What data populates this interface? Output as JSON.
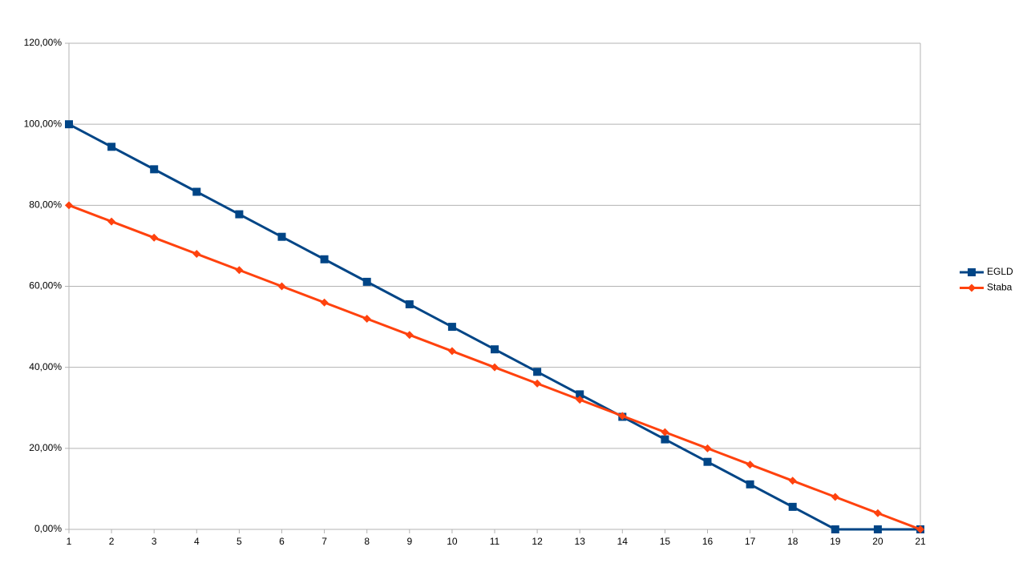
{
  "chart_data": {
    "type": "line",
    "x": [
      1,
      2,
      3,
      4,
      5,
      6,
      7,
      8,
      9,
      10,
      11,
      12,
      13,
      14,
      15,
      16,
      17,
      18,
      19,
      20,
      21
    ],
    "xlim": [
      1,
      21
    ],
    "xticks": [
      1,
      2,
      3,
      4,
      5,
      6,
      7,
      8,
      9,
      10,
      11,
      12,
      13,
      14,
      15,
      16,
      17,
      18,
      19,
      20,
      21
    ],
    "ylim": [
      0,
      120
    ],
    "yticks": [
      {
        "value": 0,
        "label": "0,00%"
      },
      {
        "value": 20,
        "label": "20,00%"
      },
      {
        "value": 40,
        "label": "40,00%"
      },
      {
        "value": 60,
        "label": "60,00%"
      },
      {
        "value": 80,
        "label": "80,00%"
      },
      {
        "value": 100,
        "label": "100,00%"
      },
      {
        "value": 120,
        "label": "120,00%"
      }
    ],
    "grid": true,
    "legend": "right",
    "series": [
      {
        "name": "EGLD",
        "color": "#004586",
        "marker": "square",
        "values": [
          100,
          94.44,
          88.89,
          83.33,
          77.78,
          72.22,
          66.67,
          61.11,
          55.56,
          50,
          44.44,
          38.89,
          33.33,
          27.78,
          22.22,
          16.67,
          11.11,
          5.56,
          0,
          0,
          0
        ]
      },
      {
        "name": "Staba",
        "color": "#ff420e",
        "marker": "diamond",
        "values": [
          80,
          76,
          72,
          68,
          64,
          60,
          56,
          52,
          48,
          44,
          40,
          36,
          32,
          28,
          24,
          20,
          16,
          12,
          8,
          4,
          0
        ]
      }
    ]
  }
}
